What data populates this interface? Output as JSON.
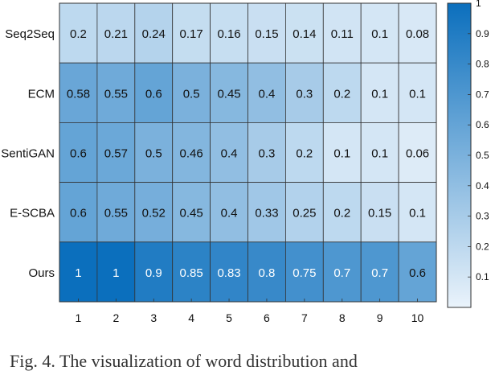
{
  "chart_data": {
    "type": "heatmap",
    "rows": [
      "Seq2Seq",
      "ECM",
      "SentiGAN",
      "E-SCBA",
      "Ours"
    ],
    "columns": [
      "1",
      "2",
      "3",
      "4",
      "5",
      "6",
      "7",
      "8",
      "9",
      "10"
    ],
    "values": [
      [
        0.2,
        0.21,
        0.24,
        0.17,
        0.16,
        0.15,
        0.14,
        0.11,
        0.1,
        0.08
      ],
      [
        0.58,
        0.55,
        0.6,
        0.5,
        0.45,
        0.4,
        0.3,
        0.2,
        0.1,
        0.1
      ],
      [
        0.6,
        0.57,
        0.5,
        0.46,
        0.4,
        0.3,
        0.2,
        0.1,
        0.1,
        0.06
      ],
      [
        0.6,
        0.55,
        0.52,
        0.45,
        0.4,
        0.33,
        0.25,
        0.2,
        0.15,
        0.1
      ],
      [
        1,
        1,
        0.9,
        0.85,
        0.83,
        0.8,
        0.75,
        0.7,
        0.7,
        0.6
      ]
    ],
    "colorbar": {
      "min": 0,
      "max": 1,
      "ticks": [
        "0.1",
        "0.2",
        "0.3",
        "0.4",
        "0.5",
        "0.6",
        "0.7",
        "0.8",
        "0.9",
        "1"
      ],
      "color_low": "#eaf3fb",
      "color_high": "#0b6fbd"
    },
    "caption_fragment": "Fig. 4. The visualization of word distribution and"
  }
}
